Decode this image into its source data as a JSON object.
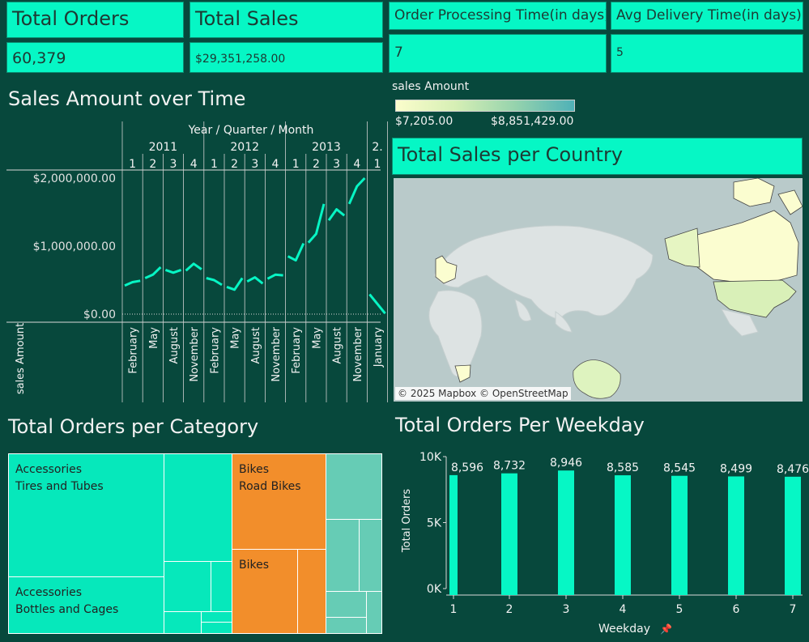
{
  "kpis": {
    "total_orders": {
      "title": "Total Orders",
      "value": "60,379"
    },
    "total_sales": {
      "title": "Total Sales",
      "value": "$29,351,258.00"
    },
    "order_processing": {
      "title": "Order Processing Time(in days)",
      "value": "7"
    },
    "avg_delivery": {
      "title": "Avg Delivery Time(in days)",
      "value": "5"
    }
  },
  "line_section": {
    "title": "Sales Amount over Time",
    "header": "Year / Quarter / Month",
    "y_axis_label": "sales Amount"
  },
  "map_section": {
    "legend_title": "sales Amount",
    "legend_min": "$7,205.00",
    "legend_max": "$8,851,429.00",
    "title": "Total Sales per Country",
    "credit": "© 2025 Mapbox © OpenStreetMap"
  },
  "treemap_section": {
    "title": "Total Orders per Category",
    "cells": [
      {
        "label1": "Accessories",
        "label2": "Tires and Tubes"
      },
      {
        "label1": "Accessories",
        "label2": "Bottles and Cages"
      },
      {
        "label1": "Bikes",
        "label2": "Road Bikes"
      },
      {
        "label1": "Bikes",
        "label2": ""
      }
    ]
  },
  "bar_section": {
    "title": "Total Orders Per Weekday",
    "x_axis_label": "Weekday",
    "y_axis_label": "Total Orders"
  },
  "colors": {
    "background": "#07483c",
    "accent": "#06f7c5",
    "line": "#07f5c4",
    "bikes": "#f28e2b",
    "treemap_other": "#66ccb5"
  },
  "chart_data": [
    {
      "type": "line",
      "title": "Sales Amount over Time",
      "header": "Year / Quarter / Month",
      "ylabel": "sales Amount",
      "ylim": [
        0,
        2200000
      ],
      "yticks": [
        0,
        1000000,
        2000000
      ],
      "ytick_labels": [
        "$0.00",
        "$1,000,000.00",
        "$2,000,000.00"
      ],
      "years": [
        {
          "label": "2011",
          "quarters": [
            "1",
            "2",
            "3",
            "4"
          ]
        },
        {
          "label": "2012",
          "quarters": [
            "1",
            "2",
            "3",
            "4"
          ]
        },
        {
          "label": "2013",
          "quarters": [
            "1",
            "2",
            "3",
            "4"
          ]
        },
        {
          "label": "2.",
          "quarters": [
            "1"
          ]
        }
      ],
      "month_labels": [
        "February",
        "May",
        "August",
        "November",
        "February",
        "May",
        "August",
        "November",
        "February",
        "May",
        "August",
        "November",
        "January"
      ],
      "segments": [
        [
          420000,
          470000,
          490000
        ],
        [
          530000,
          580000,
          690000
        ],
        [
          650000,
          610000,
          650000
        ],
        [
          640000,
          740000,
          660000
        ],
        [
          530000,
          500000,
          430000
        ],
        [
          400000,
          360000,
          530000
        ],
        [
          480000,
          540000,
          450000
        ],
        [
          520000,
          580000,
          570000
        ],
        [
          850000,
          790000,
          1040000
        ],
        [
          1050000,
          1180000,
          1620000
        ],
        [
          1380000,
          1540000,
          1450000
        ],
        [
          1620000,
          1880000,
          2000000
        ],
        [
          290000,
          10000
        ]
      ]
    },
    {
      "type": "bar",
      "title": "Total Orders Per Weekday",
      "xlabel": "Weekday",
      "ylabel": "Total Orders",
      "categories": [
        "1",
        "2",
        "3",
        "4",
        "5",
        "6",
        "7"
      ],
      "values": [
        8596,
        8732,
        8946,
        8585,
        8545,
        8499,
        8476
      ],
      "value_labels": [
        "8,596",
        "8,732",
        "8,946",
        "8,585",
        "8,545",
        "8,499",
        "8,476"
      ],
      "ylim": [
        0,
        10000
      ],
      "yticks": [
        0,
        5000,
        10000
      ],
      "ytick_labels": [
        "0K",
        "5K",
        "10K"
      ]
    }
  ]
}
